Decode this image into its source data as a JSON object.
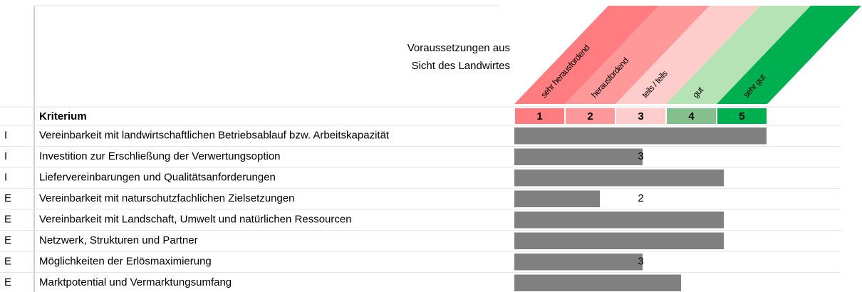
{
  "chart_data": {
    "type": "bar",
    "orientation": "horizontal",
    "heading": [
      "Voraussetzungen aus",
      "Sicht des Landwirtes"
    ],
    "column_header": "Kriterium",
    "scale_labels": [
      "sehr herausfordend",
      "herausfordend",
      "teils / teils",
      "gut",
      "sehr gut"
    ],
    "scale_numbers": [
      1,
      2,
      3,
      4,
      5
    ],
    "scale_colors": [
      "#ff7c80",
      "#ff9999",
      "#ffcccc",
      "#84c08c",
      "#00b050"
    ],
    "band_colors": [
      "#ff7c80",
      "#ff9999",
      "#ffcccc",
      "#b5e3b5",
      "#00b050"
    ],
    "groups": [
      "I",
      "I",
      "I",
      "E",
      "E",
      "E",
      "E",
      "E"
    ],
    "categories": [
      "Vereinbarkeit mit landwirtschaftlichen Betriebsablauf bzw. Arbeitskapazität",
      "Investition zur Erschließung der Verwertungsoption",
      "Liefervereinbarungen und Qualitätsanforderungen",
      "Vereinbarkeit mit naturschutzfachlichen Zielsetzungen",
      "Vereinbarkeit mit Landschaft, Umwelt und natürlichen Ressourcen",
      "Netzwerk, Strukturen und Partner",
      "Möglichkeiten der Erlösmaximierung",
      "Marktpotential und Vermarktungsumfang"
    ],
    "values": [
      5.9,
      3,
      4.9,
      2,
      4.9,
      4.9,
      3,
      3.9
    ],
    "value_labels": [
      null,
      "3",
      null,
      "2",
      null,
      null,
      "3",
      null
    ],
    "color": "#808080",
    "xlim": [
      0,
      5.9
    ]
  }
}
